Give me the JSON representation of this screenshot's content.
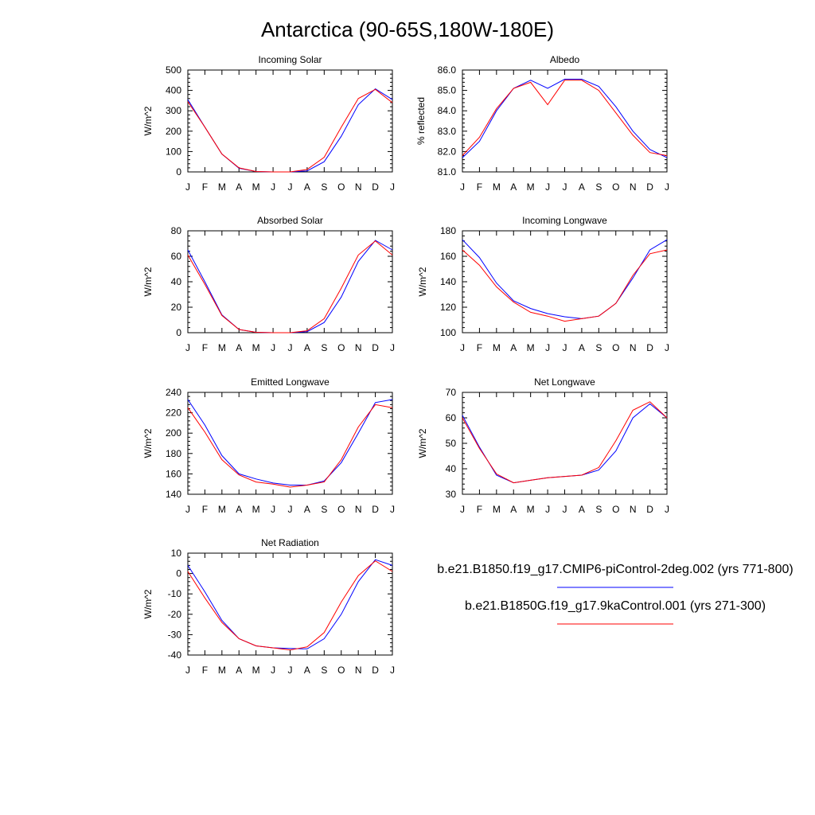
{
  "title": "Antarctica (90-65S,180W-180E)",
  "colors": {
    "series1": "#0000ff",
    "series2": "#ff0000"
  },
  "legend": [
    {
      "label": "b.e21.B1850.f19_g17.CMIP6-piControl-2deg.002 (yrs 771-800)",
      "color": "#0000ff"
    },
    {
      "label": "b.e21.B1850G.f19_g17.9kaControl.001 (yrs 271-300)",
      "color": "#ff0000"
    }
  ],
  "chart_data": [
    {
      "type": "line",
      "title": "Incoming Solar",
      "ylabel": "W/m^2",
      "x": [
        "J",
        "F",
        "M",
        "A",
        "M",
        "J",
        "J",
        "A",
        "S",
        "O",
        "N",
        "D",
        "J"
      ],
      "ylim": [
        0,
        500
      ],
      "yticks": [
        "0",
        "100",
        "200",
        "300",
        "400",
        "500"
      ],
      "series": [
        {
          "values": [
            355,
            220,
            88,
            18,
            2,
            0,
            0,
            5,
            50,
            175,
            330,
            408,
            355
          ]
        },
        {
          "values": [
            345,
            220,
            88,
            20,
            2,
            0,
            0,
            12,
            72,
            220,
            360,
            405,
            340
          ]
        }
      ]
    },
    {
      "type": "line",
      "title": "Albedo",
      "ylabel": "% reflected",
      "x": [
        "J",
        "F",
        "M",
        "A",
        "M",
        "J",
        "J",
        "A",
        "S",
        "O",
        "N",
        "D",
        "J"
      ],
      "ylim": [
        81.0,
        86.0
      ],
      "yticks": [
        "81.0",
        "82.0",
        "83.0",
        "84.0",
        "85.0",
        "86.0"
      ],
      "series": [
        {
          "values": [
            81.7,
            82.5,
            84.0,
            85.1,
            85.5,
            85.1,
            85.55,
            85.55,
            85.2,
            84.2,
            83.0,
            82.1,
            81.7
          ]
        },
        {
          "values": [
            81.8,
            82.7,
            84.1,
            85.1,
            85.4,
            84.3,
            85.5,
            85.5,
            85.0,
            83.9,
            82.8,
            81.95,
            81.8
          ]
        }
      ]
    },
    {
      "type": "line",
      "title": "Absorbed Solar",
      "ylabel": "W/m^2",
      "x": [
        "J",
        "F",
        "M",
        "A",
        "M",
        "J",
        "J",
        "A",
        "S",
        "O",
        "N",
        "D",
        "J"
      ],
      "ylim": [
        0,
        80
      ],
      "yticks": [
        "0",
        "20",
        "40",
        "60",
        "80"
      ],
      "series": [
        {
          "values": [
            65,
            40,
            14,
            2.5,
            0.3,
            0,
            0,
            0.8,
            8,
            28,
            56,
            72.5,
            65
          ]
        },
        {
          "values": [
            61,
            38,
            13.5,
            2.5,
            0.3,
            0,
            0,
            1.5,
            11,
            35,
            61,
            72,
            61
          ]
        }
      ]
    },
    {
      "type": "line",
      "title": "Incoming Longwave",
      "ylabel": "W/m^2",
      "x": [
        "J",
        "F",
        "M",
        "A",
        "M",
        "J",
        "J",
        "A",
        "S",
        "O",
        "N",
        "D",
        "J"
      ],
      "ylim": [
        100,
        180
      ],
      "yticks": [
        "100",
        "120",
        "140",
        "160",
        "180"
      ],
      "series": [
        {
          "values": [
            173,
            159,
            139,
            125,
            119,
            115,
            112.5,
            111,
            113,
            123,
            143,
            165,
            173
          ]
        },
        {
          "values": [
            165,
            153,
            136,
            124,
            116,
            113,
            109,
            111,
            113,
            123,
            145,
            162,
            165
          ]
        }
      ]
    },
    {
      "type": "line",
      "title": "Emitted Longwave",
      "ylabel": "W/m^2",
      "x": [
        "J",
        "F",
        "M",
        "A",
        "M",
        "J",
        "J",
        "A",
        "S",
        "O",
        "N",
        "D",
        "J"
      ],
      "ylim": [
        140,
        240
      ],
      "yticks": [
        "140",
        "160",
        "180",
        "200",
        "220",
        "240"
      ],
      "series": [
        {
          "values": [
            233,
            208,
            178,
            160,
            155,
            151,
            149,
            149,
            153,
            171,
            200,
            230,
            233
          ]
        },
        {
          "values": [
            225,
            201,
            174,
            159,
            152,
            150,
            147,
            149,
            152,
            174,
            206,
            228,
            225
          ]
        }
      ]
    },
    {
      "type": "line",
      "title": "Net Longwave",
      "ylabel": "W/m^2",
      "x": [
        "J",
        "F",
        "M",
        "A",
        "M",
        "J",
        "J",
        "A",
        "S",
        "O",
        "N",
        "D",
        "J"
      ],
      "ylim": [
        30,
        70
      ],
      "yticks": [
        "30",
        "40",
        "50",
        "60",
        "70"
      ],
      "series": [
        {
          "values": [
            61,
            48.5,
            37.5,
            34.5,
            35.5,
            36.5,
            37,
            37.5,
            39.5,
            47,
            60,
            65.5,
            60
          ]
        },
        {
          "values": [
            60,
            48,
            38,
            34.5,
            35.5,
            36.5,
            37,
            37.5,
            40.5,
            51,
            63,
            66.3,
            60
          ]
        }
      ]
    },
    {
      "type": "line",
      "title": "Net Radiation",
      "ylabel": "W/m^2",
      "x": [
        "J",
        "F",
        "M",
        "A",
        "M",
        "J",
        "J",
        "A",
        "S",
        "O",
        "N",
        "D",
        "J"
      ],
      "ylim": [
        -40,
        10
      ],
      "yticks": [
        "-40",
        "-30",
        "-20",
        "-10",
        "0",
        "10"
      ],
      "series": [
        {
          "values": [
            4,
            -9,
            -23,
            -32,
            -35.5,
            -36.5,
            -36.8,
            -37,
            -32,
            -20,
            -4,
            6.8,
            4
          ]
        },
        {
          "values": [
            1,
            -12,
            -24,
            -32,
            -35.5,
            -36.5,
            -37.5,
            -36,
            -29,
            -14,
            -1,
            6.2,
            1
          ]
        }
      ]
    }
  ]
}
